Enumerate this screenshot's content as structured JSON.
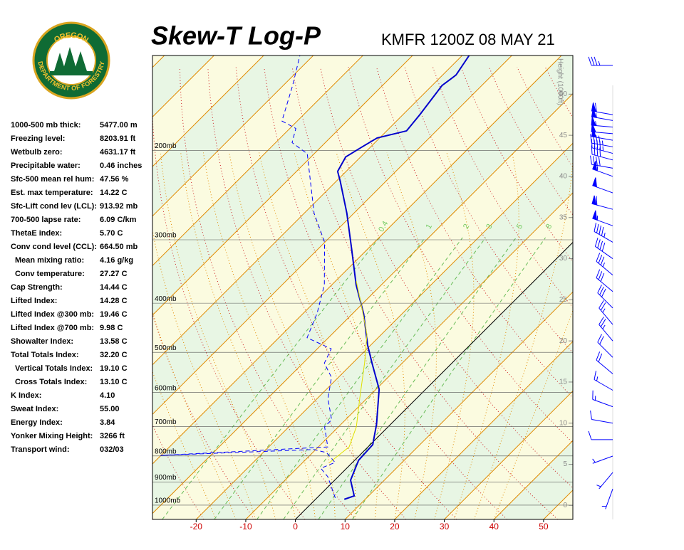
{
  "logo": {
    "top": "OREGON",
    "bottom": "DEPARTMENT OF FORESTRY"
  },
  "indices": [
    {
      "label": "1000-500 mb thick:",
      "value": "5477.00 m"
    },
    {
      "label": "Freezing level:",
      "value": "8203.91 ft"
    },
    {
      "label": "Wetbulb zero:",
      "value": "4631.17 ft"
    },
    {
      "label": "Precipitable water:",
      "value": "0.46 inches"
    },
    {
      "label": "Sfc-500 mean rel hum:",
      "value": "47.56 %"
    },
    {
      "label": "Est. max temperature:",
      "value": "14.22 C"
    },
    {
      "label": "Sfc-Lift cond lev (LCL):",
      "value": "913.92 mb"
    },
    {
      "label": "700-500 lapse rate:",
      "value": "6.09 C/km"
    },
    {
      "label": "ThetaE index:",
      "value": "5.70 C"
    },
    {
      "label": "Conv cond level (CCL):",
      "value": "664.50 mb"
    },
    {
      "label": "Mean mixing ratio:",
      "value": "4.16 g/kg",
      "indent": true
    },
    {
      "label": "Conv temperature:",
      "value": "27.27 C",
      "indent": true
    },
    {
      "label": "Cap Strength:",
      "value": "14.44 C"
    },
    {
      "label": "Lifted Index:",
      "value": "14.28 C"
    },
    {
      "label": "Lifted Index @300 mb:",
      "value": "19.46 C"
    },
    {
      "label": "Lifted Index @700 mb:",
      "value": "9.98 C"
    },
    {
      "label": "Showalter Index:",
      "value": "13.58 C"
    },
    {
      "label": "Total Totals Index:",
      "value": "32.20 C"
    },
    {
      "label": "Vertical Totals Index:",
      "value": "19.10 C",
      "indent": true
    },
    {
      "label": "Cross Totals Index:",
      "value": "13.10 C",
      "indent": true
    },
    {
      "label": "K Index:",
      "value": "4.10"
    },
    {
      "label": "Sweat Index:",
      "value": "55.00"
    },
    {
      "label": "Energy Index:",
      "value": "3.84"
    },
    {
      "label": "Yonker Mixing Height:",
      "value": "3266 ft"
    },
    {
      "label": "Transport wind:",
      "value": "032/03"
    }
  ],
  "chart_data": {
    "type": "skewt",
    "title": "Skew-T Log-P",
    "subtitle": "KMFR 1200Z 08 MAY 21",
    "log_y": true,
    "xlim": [
      -28.8,
      55.9
    ],
    "xticks": [
      -20,
      -10,
      0,
      10,
      20,
      30,
      40,
      50
    ],
    "ylim": [
      1067,
      130
    ],
    "yticks": [
      {
        "value": 200,
        "label": "200mb"
      },
      {
        "value": 300,
        "label": "300mb"
      },
      {
        "value": 400,
        "label": "400mb"
      },
      {
        "value": 500,
        "label": "500mb"
      },
      {
        "value": 600,
        "label": "600mb"
      },
      {
        "value": 700,
        "label": "700mb"
      },
      {
        "value": 800,
        "label": "800mb"
      },
      {
        "value": 900,
        "label": "900mb"
      },
      {
        "value": 1000,
        "label": "1000mb"
      }
    ],
    "y2_label": "Height (1000ft)",
    "y2lim": [
      -1.7,
      54.7
    ],
    "y2ticks": [
      0,
      5,
      10,
      15,
      20,
      25,
      30,
      35,
      40,
      45,
      50
    ],
    "mixing_ratios": [
      {
        "value": 0.4,
        "label": "0.4"
      },
      1,
      2,
      3,
      5,
      8
    ],
    "series": [
      {
        "color": "#0000cc",
        "dashed": false,
        "width": 2,
        "pressure": [
          974,
          959,
          893,
          816,
          760,
          692,
          591,
          525,
          484,
          420,
          368,
          313,
          266,
          230,
          220,
          206,
          196,
          189,
          183,
          170,
          149,
          142,
          130
        ],
        "values": [
          5.8,
          7.1,
          3.2,
          0.8,
          0.5,
          -2.9,
          -9.4,
          -16.1,
          -20.6,
          -27.7,
          -35.1,
          -43.2,
          -51.4,
          -59.2,
          -61.7,
          -63.0,
          -61.6,
          -60.5,
          -56.0,
          -56.6,
          -58.0,
          -57.3,
          -58.6
        ]
      },
      {
        "color": "#0000ff",
        "dashed": true,
        "width": 1,
        "pressure": [
          968,
          879,
          846,
          824,
          788,
          777,
          798,
          768,
          701,
          679,
          617,
          560,
          525,
          492,
          468,
          419,
          368,
          303,
          266,
          203,
          193,
          181,
          175,
          149,
          130
        ],
        "values": [
          3.7,
          -2.1,
          -5.2,
          -3.5,
          -7.2,
          -10.4,
          -40.1,
          -8.1,
          -12.8,
          -12.8,
          -17.8,
          -21.4,
          -25.7,
          -27.2,
          -34.3,
          -37.2,
          -41.5,
          -50.1,
          -58.0,
          -71.4,
          -76.7,
          -78.8,
          -83.1,
          -88.1,
          -92.7
        ]
      },
      {
        "color": "#e0e000",
        "dashed": false,
        "width": 1,
        "pressure": [
          824,
          768,
          701,
          617,
          525,
          461,
          392,
          362
        ],
        "values": [
          -4.6,
          -3.8,
          -6.4,
          -11.4,
          -17.6,
          -22.9,
          -31.5,
          -35.8
        ]
      }
    ],
    "winds": {
      "heights": [
        53.5,
        47.5,
        46.8,
        46,
        45.2,
        44.4,
        43.6,
        42.8,
        42,
        41,
        40,
        38,
        36,
        34,
        32,
        30,
        28,
        26,
        24,
        22,
        20,
        18,
        16,
        14,
        12,
        10,
        8,
        6,
        4,
        2
      ],
      "directions": [
        270,
        280,
        280,
        275,
        275,
        280,
        280,
        285,
        285,
        280,
        290,
        290,
        285,
        290,
        300,
        305,
        310,
        310,
        315,
        320,
        320,
        315,
        310,
        300,
        290,
        280,
        270,
        250,
        220,
        200
      ],
      "speeds": [
        35,
        60,
        55,
        55,
        50,
        50,
        45,
        45,
        40,
        40,
        55,
        50,
        60,
        55,
        45,
        40,
        35,
        30,
        30,
        25,
        25,
        20,
        20,
        15,
        15,
        10,
        10,
        5,
        5,
        5
      ],
      "color": "#0000ff"
    }
  }
}
